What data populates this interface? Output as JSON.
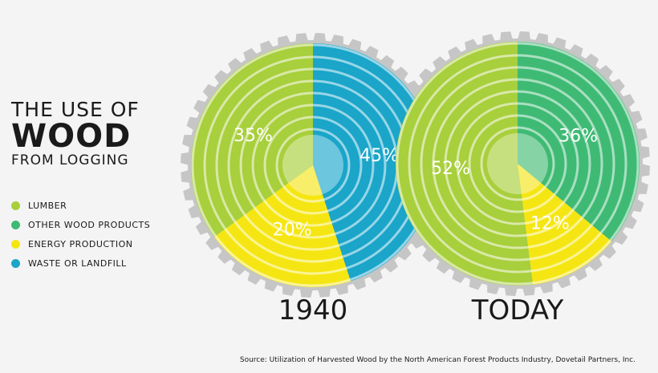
{
  "title": {
    "line1": "THE USE OF",
    "line2": "WOOD",
    "line3": "FROM LOGGING"
  },
  "legend": [
    {
      "label": "LUMBER",
      "color": "#a8cf3c"
    },
    {
      "label": "OTHER WOOD PRODUCTS",
      "color": "#3fba74"
    },
    {
      "label": "ENERGY PRODUCTION",
      "color": "#f5e613"
    },
    {
      "label": "WASTE OR LANDFILL",
      "color": "#1aa5c9"
    }
  ],
  "source": "Source: Utilization of Harvested Wood by the North American Forest Products Industry, Dovetail Partners, Inc.",
  "chart_data": [
    {
      "type": "pie",
      "title": "1940",
      "slices": [
        {
          "name": "WASTE OR LANDFILL",
          "value": 45,
          "label": "45%",
          "color": "#1aa5c9"
        },
        {
          "name": "ENERGY PRODUCTION",
          "value": 20,
          "label": "20%",
          "color": "#f5e613"
        },
        {
          "name": "LUMBER",
          "value": 35,
          "label": "35%",
          "color": "#a8cf3c"
        }
      ]
    },
    {
      "type": "pie",
      "title": "TODAY",
      "slices": [
        {
          "name": "OTHER WOOD PRODUCTS",
          "value": 36,
          "label": "36%",
          "color": "#3fba74"
        },
        {
          "name": "ENERGY PRODUCTION",
          "value": 12,
          "label": "12%",
          "color": "#f5e613"
        },
        {
          "name": "LUMBER",
          "value": 52,
          "label": "52%",
          "color": "#a8cf3c"
        }
      ]
    }
  ]
}
